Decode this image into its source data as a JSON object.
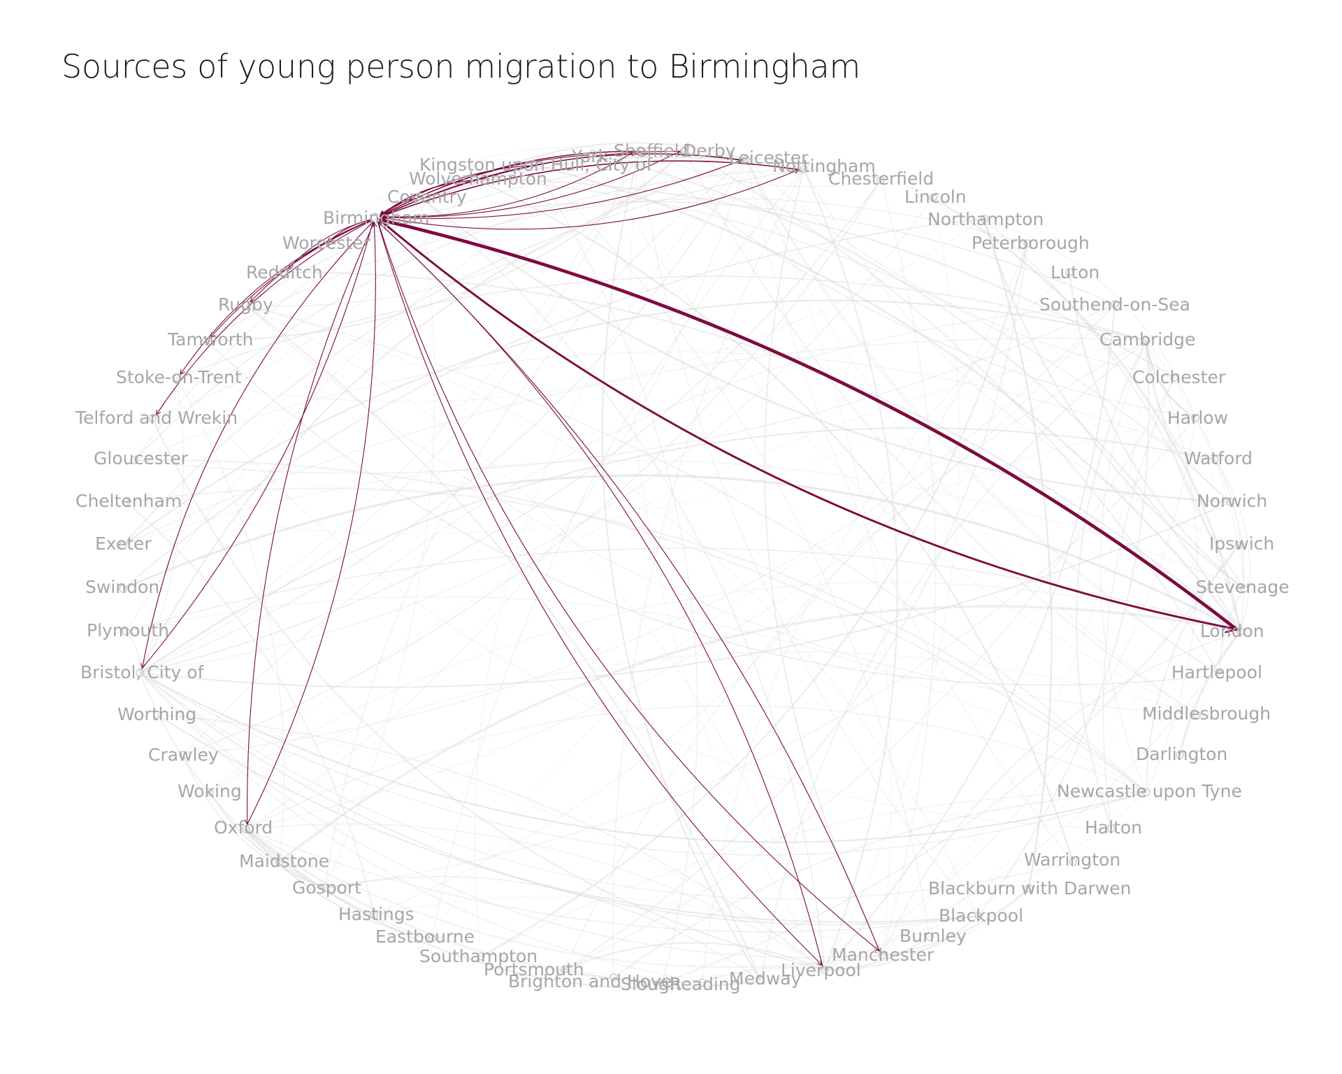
{
  "title": "Sources of young person migration to Birmingham",
  "colors": {
    "highlight": "#7d0a3f",
    "background_edge": "#e2e2e2",
    "label": "#a6a6a6",
    "title": "#1a1a1a"
  },
  "nodes": [
    {
      "id": "birmingham",
      "label": "Birmingham",
      "focus": true
    },
    {
      "id": "coventry",
      "label": "Coventry"
    },
    {
      "id": "wolverhampton",
      "label": "Wolverhampton"
    },
    {
      "id": "hull",
      "label": "Kingston upon Hull, City of"
    },
    {
      "id": "york",
      "label": "York"
    },
    {
      "id": "sheffield",
      "label": "Sheffield"
    },
    {
      "id": "derby",
      "label": "Derby"
    },
    {
      "id": "leicester",
      "label": "Leicester"
    },
    {
      "id": "nottingham",
      "label": "Nottingham"
    },
    {
      "id": "chesterfield",
      "label": "Chesterfield"
    },
    {
      "id": "lincoln",
      "label": "Lincoln"
    },
    {
      "id": "northampton",
      "label": "Northampton"
    },
    {
      "id": "peterborough",
      "label": "Peterborough"
    },
    {
      "id": "luton",
      "label": "Luton"
    },
    {
      "id": "southend",
      "label": "Southend-on-Sea"
    },
    {
      "id": "cambridge",
      "label": "Cambridge"
    },
    {
      "id": "colchester",
      "label": "Colchester"
    },
    {
      "id": "harlow",
      "label": "Harlow"
    },
    {
      "id": "watford",
      "label": "Watford"
    },
    {
      "id": "norwich",
      "label": "Norwich"
    },
    {
      "id": "ipswich",
      "label": "Ipswich"
    },
    {
      "id": "stevenage",
      "label": "Stevenage"
    },
    {
      "id": "london",
      "label": "London"
    },
    {
      "id": "hartlepool",
      "label": "Hartlepool"
    },
    {
      "id": "middlesbrough",
      "label": "Middlesbrough"
    },
    {
      "id": "darlington",
      "label": "Darlington"
    },
    {
      "id": "newcastle",
      "label": "Newcastle upon Tyne"
    },
    {
      "id": "halton",
      "label": "Halton"
    },
    {
      "id": "warrington",
      "label": "Warrington"
    },
    {
      "id": "blackburn",
      "label": "Blackburn with Darwen"
    },
    {
      "id": "blackpool",
      "label": "Blackpool"
    },
    {
      "id": "burnley",
      "label": "Burnley"
    },
    {
      "id": "manchester",
      "label": "Manchester"
    },
    {
      "id": "liverpool",
      "label": "Liverpool"
    },
    {
      "id": "medway",
      "label": "Medway"
    },
    {
      "id": "reading",
      "label": "Reading"
    },
    {
      "id": "slough",
      "label": "Slough"
    },
    {
      "id": "brighton",
      "label": "Brighton and Hove"
    },
    {
      "id": "portsmouth",
      "label": "Portsmouth"
    },
    {
      "id": "southampton",
      "label": "Southampton"
    },
    {
      "id": "eastbourne",
      "label": "Eastbourne"
    },
    {
      "id": "hastings",
      "label": "Hastings"
    },
    {
      "id": "gosport",
      "label": "Gosport"
    },
    {
      "id": "maidstone",
      "label": "Maidstone"
    },
    {
      "id": "oxford",
      "label": "Oxford"
    },
    {
      "id": "woking",
      "label": "Woking"
    },
    {
      "id": "crawley",
      "label": "Crawley"
    },
    {
      "id": "worthing",
      "label": "Worthing"
    },
    {
      "id": "bristol",
      "label": "Bristol, City of"
    },
    {
      "id": "plymouth",
      "label": "Plymouth"
    },
    {
      "id": "swindon",
      "label": "Swindon"
    },
    {
      "id": "exeter",
      "label": "Exeter"
    },
    {
      "id": "cheltenham",
      "label": "Cheltenham"
    },
    {
      "id": "gloucester",
      "label": "Gloucester"
    },
    {
      "id": "telford",
      "label": "Telford and Wrekin"
    },
    {
      "id": "stoke",
      "label": "Stoke-on-Trent"
    },
    {
      "id": "tamworth",
      "label": "Tamworth"
    },
    {
      "id": "rugby",
      "label": "Rugby"
    },
    {
      "id": "redditch",
      "label": "Redditch"
    },
    {
      "id": "worcester",
      "label": "Worcester"
    }
  ],
  "highlighted_edges": [
    {
      "from": "london",
      "to": "birmingham",
      "weight": 5
    },
    {
      "from": "birmingham",
      "to": "london",
      "weight": 3
    },
    {
      "from": "birmingham",
      "to": "manchester",
      "weight": 1
    },
    {
      "from": "manchester",
      "to": "birmingham",
      "weight": 1
    },
    {
      "from": "birmingham",
      "to": "liverpool",
      "weight": 1
    },
    {
      "from": "liverpool",
      "to": "birmingham",
      "weight": 1
    },
    {
      "from": "birmingham",
      "to": "oxford",
      "weight": 1
    },
    {
      "from": "oxford",
      "to": "birmingham",
      "weight": 1
    },
    {
      "from": "birmingham",
      "to": "bristol",
      "weight": 1
    },
    {
      "from": "bristol",
      "to": "birmingham",
      "weight": 1
    },
    {
      "from": "birmingham",
      "to": "telford",
      "weight": 1
    },
    {
      "from": "birmingham",
      "to": "stoke",
      "weight": 1
    },
    {
      "from": "birmingham",
      "to": "rugby",
      "weight": 1
    },
    {
      "from": "birmingham",
      "to": "worcester",
      "weight": 1
    },
    {
      "from": "birmingham",
      "to": "redditch",
      "weight": 1
    },
    {
      "from": "birmingham",
      "to": "tamworth",
      "weight": 1
    },
    {
      "from": "sheffield",
      "to": "birmingham",
      "weight": 1.5
    },
    {
      "from": "birmingham",
      "to": "sheffield",
      "weight": 1
    },
    {
      "from": "derby",
      "to": "birmingham",
      "weight": 1
    },
    {
      "from": "birmingham",
      "to": "derby",
      "weight": 1
    },
    {
      "from": "leicester",
      "to": "birmingham",
      "weight": 1.5
    },
    {
      "from": "birmingham",
      "to": "leicester",
      "weight": 1
    },
    {
      "from": "nottingham",
      "to": "birmingham",
      "weight": 1.5
    },
    {
      "from": "birmingham",
      "to": "nottingham",
      "weight": 1
    },
    {
      "from": "york",
      "to": "birmingham",
      "weight": 1
    },
    {
      "from": "hull",
      "to": "birmingham",
      "weight": 1
    },
    {
      "from": "wolverhampton",
      "to": "birmingham",
      "weight": 1.5
    },
    {
      "from": "coventry",
      "to": "birmingham",
      "weight": 1.5
    }
  ]
}
